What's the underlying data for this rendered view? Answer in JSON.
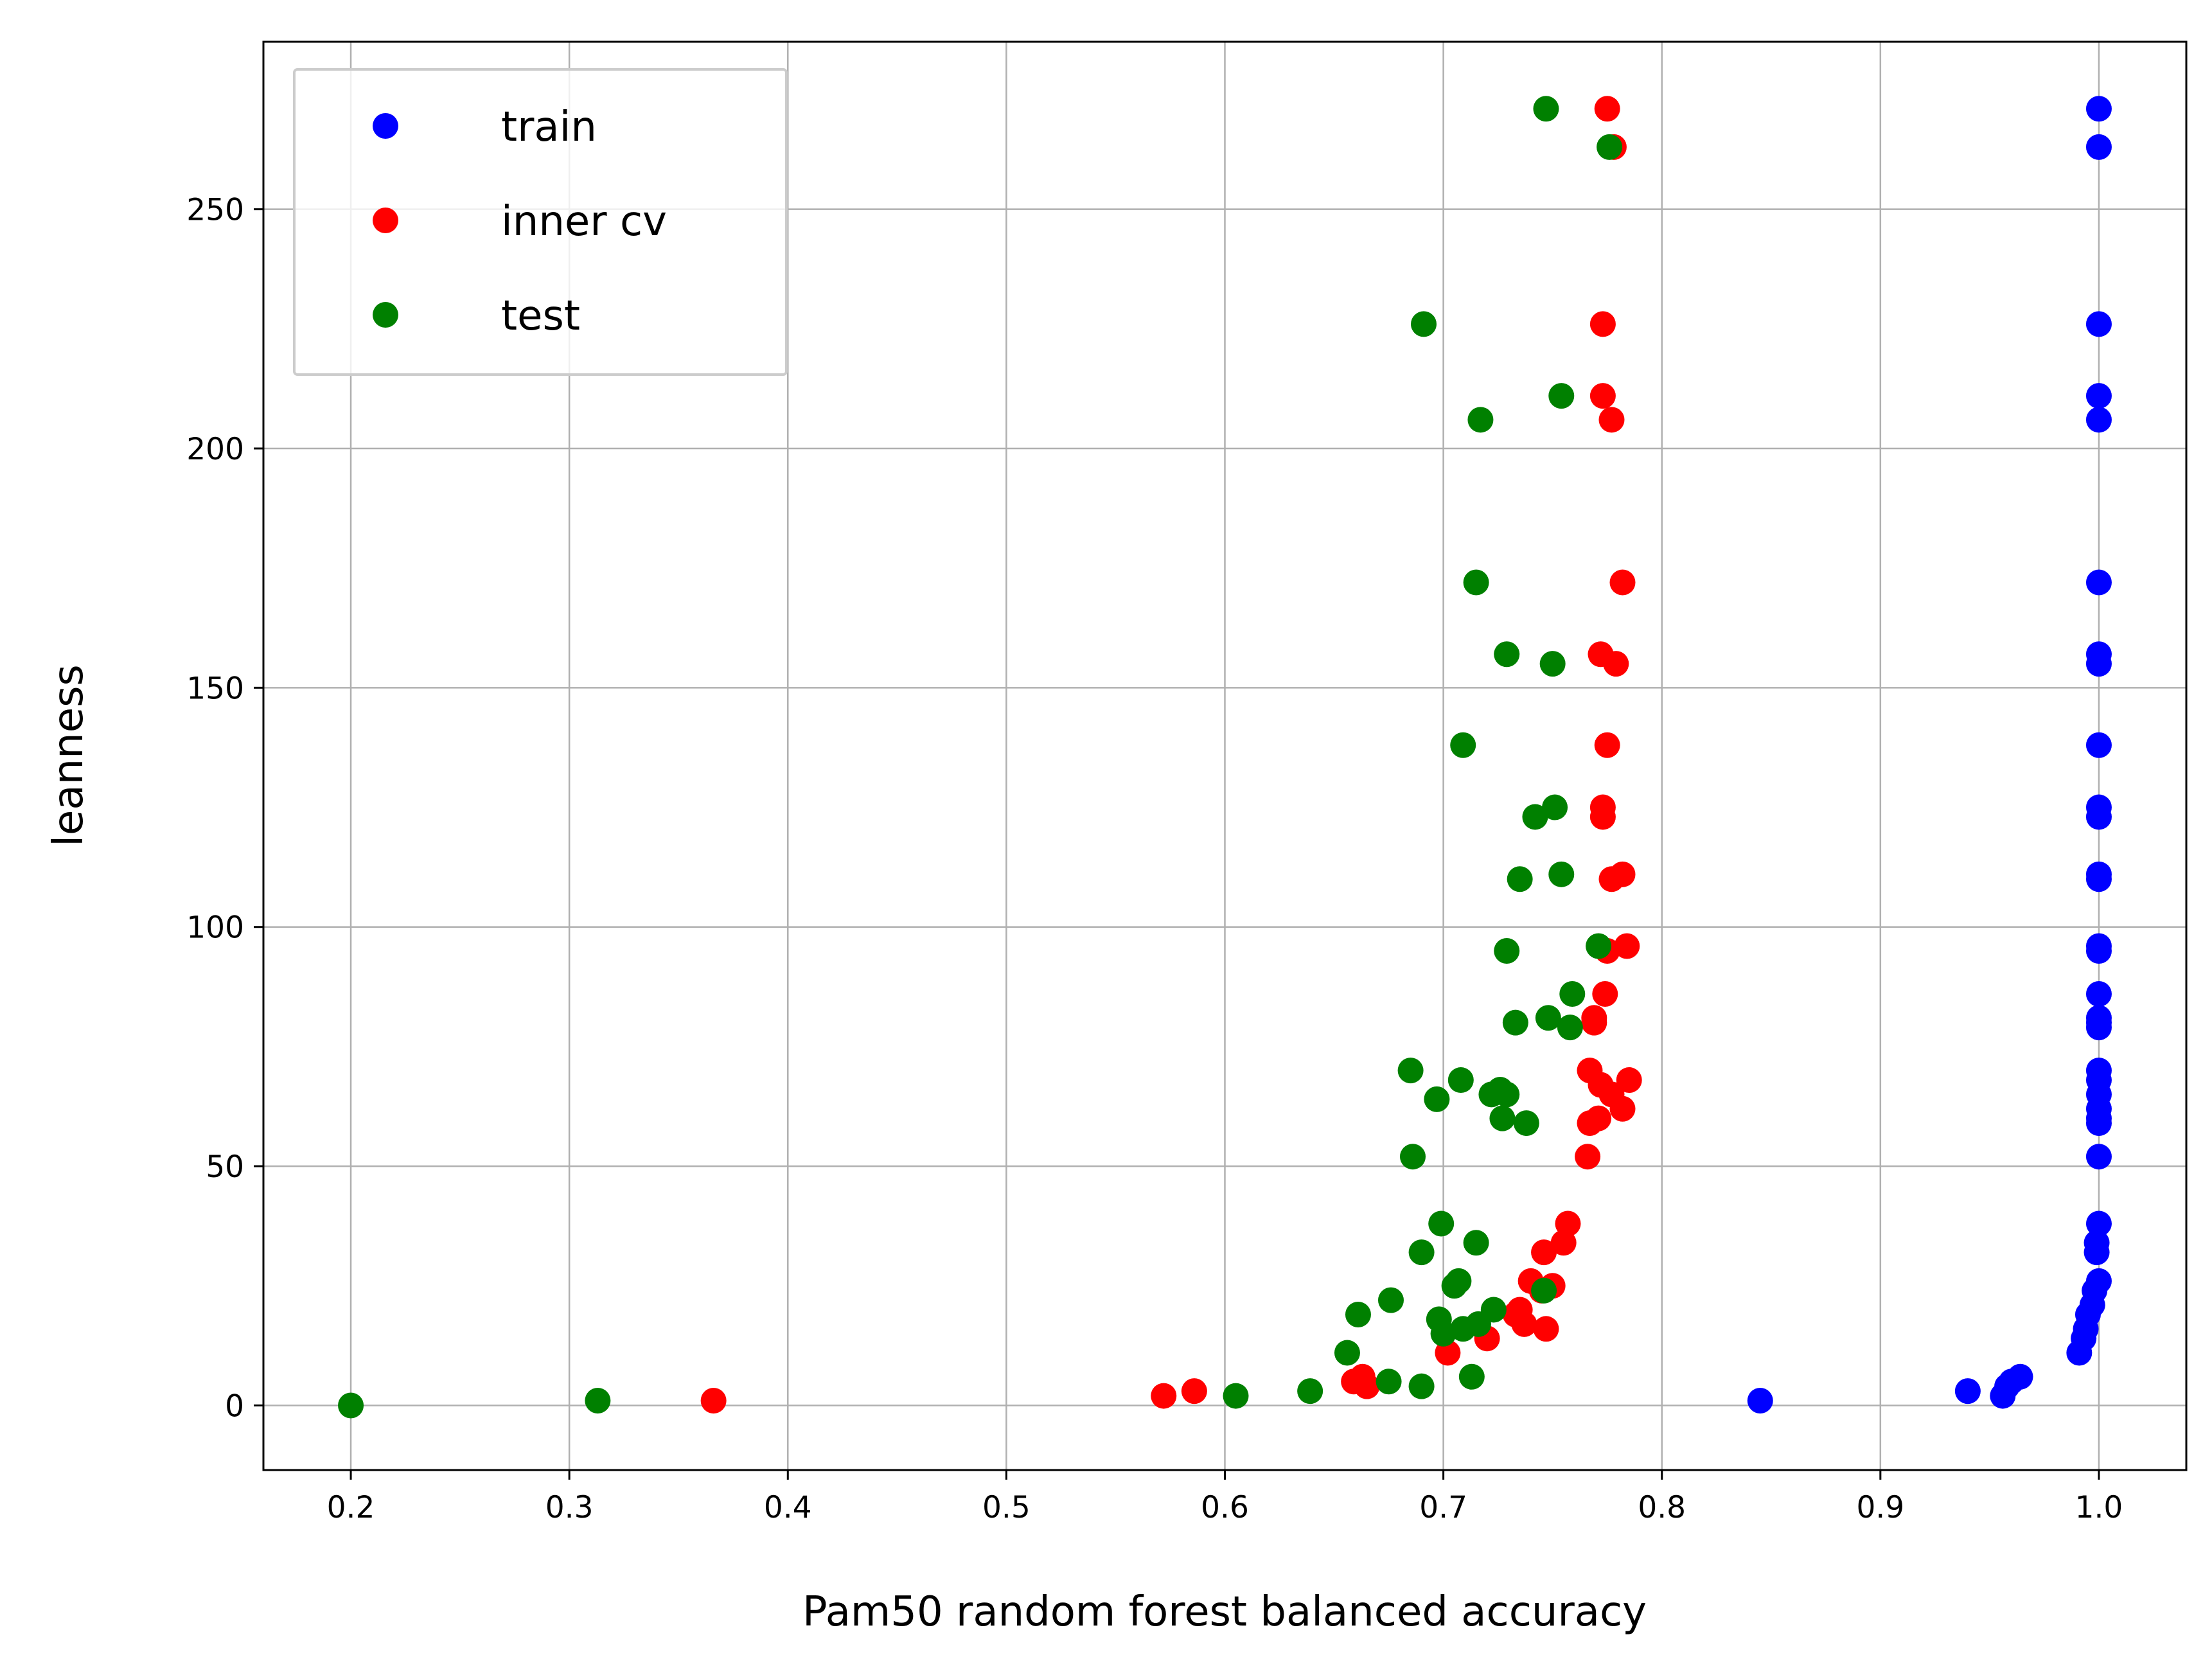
{
  "chart_data": {
    "type": "scatter",
    "title": "",
    "xlabel": "Pam50 random forest balanced accuracy",
    "ylabel": "leanness",
    "xlim": [
      0.16,
      1.04
    ],
    "ylim": [
      -13.5,
      285
    ],
    "xticks": [
      0.2,
      0.3,
      0.4,
      0.5,
      0.6,
      0.7,
      0.8,
      0.9,
      1.0
    ],
    "xtick_labels": [
      "0.2",
      "0.3",
      "0.4",
      "0.5",
      "0.6",
      "0.7",
      "0.8",
      "0.9",
      "1.0"
    ],
    "yticks": [
      0,
      50,
      100,
      150,
      200,
      250
    ],
    "ytick_labels": [
      "0",
      "50",
      "100",
      "150",
      "200",
      "250"
    ],
    "grid": true,
    "legend_position": "top-left",
    "series": [
      {
        "name": "train",
        "color": "#0000ff",
        "points": [
          [
            1.0,
            271
          ],
          [
            1.0,
            263
          ],
          [
            1.0,
            226
          ],
          [
            1.0,
            211
          ],
          [
            1.0,
            206
          ],
          [
            1.0,
            172
          ],
          [
            1.0,
            157
          ],
          [
            1.0,
            155
          ],
          [
            1.0,
            138
          ],
          [
            1.0,
            125
          ],
          [
            1.0,
            123
          ],
          [
            1.0,
            111
          ],
          [
            1.0,
            110
          ],
          [
            1.0,
            96
          ],
          [
            1.0,
            95
          ],
          [
            1.0,
            86
          ],
          [
            1.0,
            81
          ],
          [
            1.0,
            80
          ],
          [
            1.0,
            79
          ],
          [
            1.0,
            70
          ],
          [
            1.0,
            68
          ],
          [
            1.0,
            65
          ],
          [
            1.0,
            62
          ],
          [
            1.0,
            60
          ],
          [
            1.0,
            59
          ],
          [
            1.0,
            52
          ],
          [
            1.0,
            38
          ],
          [
            0.999,
            34
          ],
          [
            0.999,
            32
          ],
          [
            1.0,
            26
          ],
          [
            0.998,
            24
          ],
          [
            0.997,
            21
          ],
          [
            0.995,
            19
          ],
          [
            0.994,
            16
          ],
          [
            0.993,
            14
          ],
          [
            0.991,
            11
          ],
          [
            0.964,
            6
          ],
          [
            0.96,
            5
          ],
          [
            0.958,
            4
          ],
          [
            0.956,
            2
          ],
          [
            0.94,
            3
          ],
          [
            0.845,
            1
          ]
        ]
      },
      {
        "name": "inner cv",
        "color": "#ff0000",
        "points": [
          [
            0.775,
            271
          ],
          [
            0.778,
            263
          ],
          [
            0.773,
            226
          ],
          [
            0.773,
            211
          ],
          [
            0.777,
            206
          ],
          [
            0.782,
            172
          ],
          [
            0.772,
            157
          ],
          [
            0.779,
            155
          ],
          [
            0.775,
            138
          ],
          [
            0.773,
            125
          ],
          [
            0.773,
            123
          ],
          [
            0.782,
            111
          ],
          [
            0.777,
            110
          ],
          [
            0.784,
            96
          ],
          [
            0.775,
            95
          ],
          [
            0.774,
            86
          ],
          [
            0.769,
            81
          ],
          [
            0.769,
            80
          ],
          [
            0.767,
            70
          ],
          [
            0.785,
            68
          ],
          [
            0.772,
            67
          ],
          [
            0.777,
            65
          ],
          [
            0.782,
            62
          ],
          [
            0.771,
            60
          ],
          [
            0.767,
            59
          ],
          [
            0.766,
            52
          ],
          [
            0.757,
            38
          ],
          [
            0.755,
            34
          ],
          [
            0.746,
            32
          ],
          [
            0.74,
            26
          ],
          [
            0.75,
            25
          ],
          [
            0.745,
            24
          ],
          [
            0.735,
            20
          ],
          [
            0.733,
            19
          ],
          [
            0.737,
            17
          ],
          [
            0.747,
            16
          ],
          [
            0.72,
            14
          ],
          [
            0.702,
            11
          ],
          [
            0.663,
            6
          ],
          [
            0.659,
            5
          ],
          [
            0.665,
            4
          ],
          [
            0.586,
            3
          ],
          [
            0.572,
            2
          ],
          [
            0.366,
            1
          ]
        ]
      },
      {
        "name": "test",
        "color": "#008000",
        "points": [
          [
            0.747,
            271
          ],
          [
            0.776,
            263
          ],
          [
            0.691,
            226
          ],
          [
            0.754,
            211
          ],
          [
            0.717,
            206
          ],
          [
            0.715,
            172
          ],
          [
            0.729,
            157
          ],
          [
            0.75,
            155
          ],
          [
            0.709,
            138
          ],
          [
            0.742,
            123
          ],
          [
            0.751,
            125
          ],
          [
            0.735,
            110
          ],
          [
            0.754,
            111
          ],
          [
            0.729,
            95
          ],
          [
            0.771,
            96
          ],
          [
            0.759,
            86
          ],
          [
            0.733,
            80
          ],
          [
            0.748,
            81
          ],
          [
            0.758,
            79
          ],
          [
            0.685,
            70
          ],
          [
            0.708,
            68
          ],
          [
            0.726,
            66
          ],
          [
            0.729,
            65
          ],
          [
            0.697,
            64
          ],
          [
            0.722,
            65
          ],
          [
            0.727,
            60
          ],
          [
            0.738,
            59
          ],
          [
            0.686,
            52
          ],
          [
            0.699,
            38
          ],
          [
            0.715,
            34
          ],
          [
            0.69,
            32
          ],
          [
            0.707,
            26
          ],
          [
            0.705,
            25
          ],
          [
            0.746,
            24
          ],
          [
            0.676,
            22
          ],
          [
            0.723,
            20
          ],
          [
            0.661,
            19
          ],
          [
            0.698,
            18
          ],
          [
            0.716,
            17
          ],
          [
            0.709,
            16
          ],
          [
            0.7,
            15
          ],
          [
            0.656,
            11
          ],
          [
            0.713,
            6
          ],
          [
            0.675,
            5
          ],
          [
            0.69,
            4
          ],
          [
            0.639,
            3
          ],
          [
            0.605,
            2
          ],
          [
            0.313,
            1
          ],
          [
            0.2,
            0
          ]
        ]
      }
    ]
  }
}
